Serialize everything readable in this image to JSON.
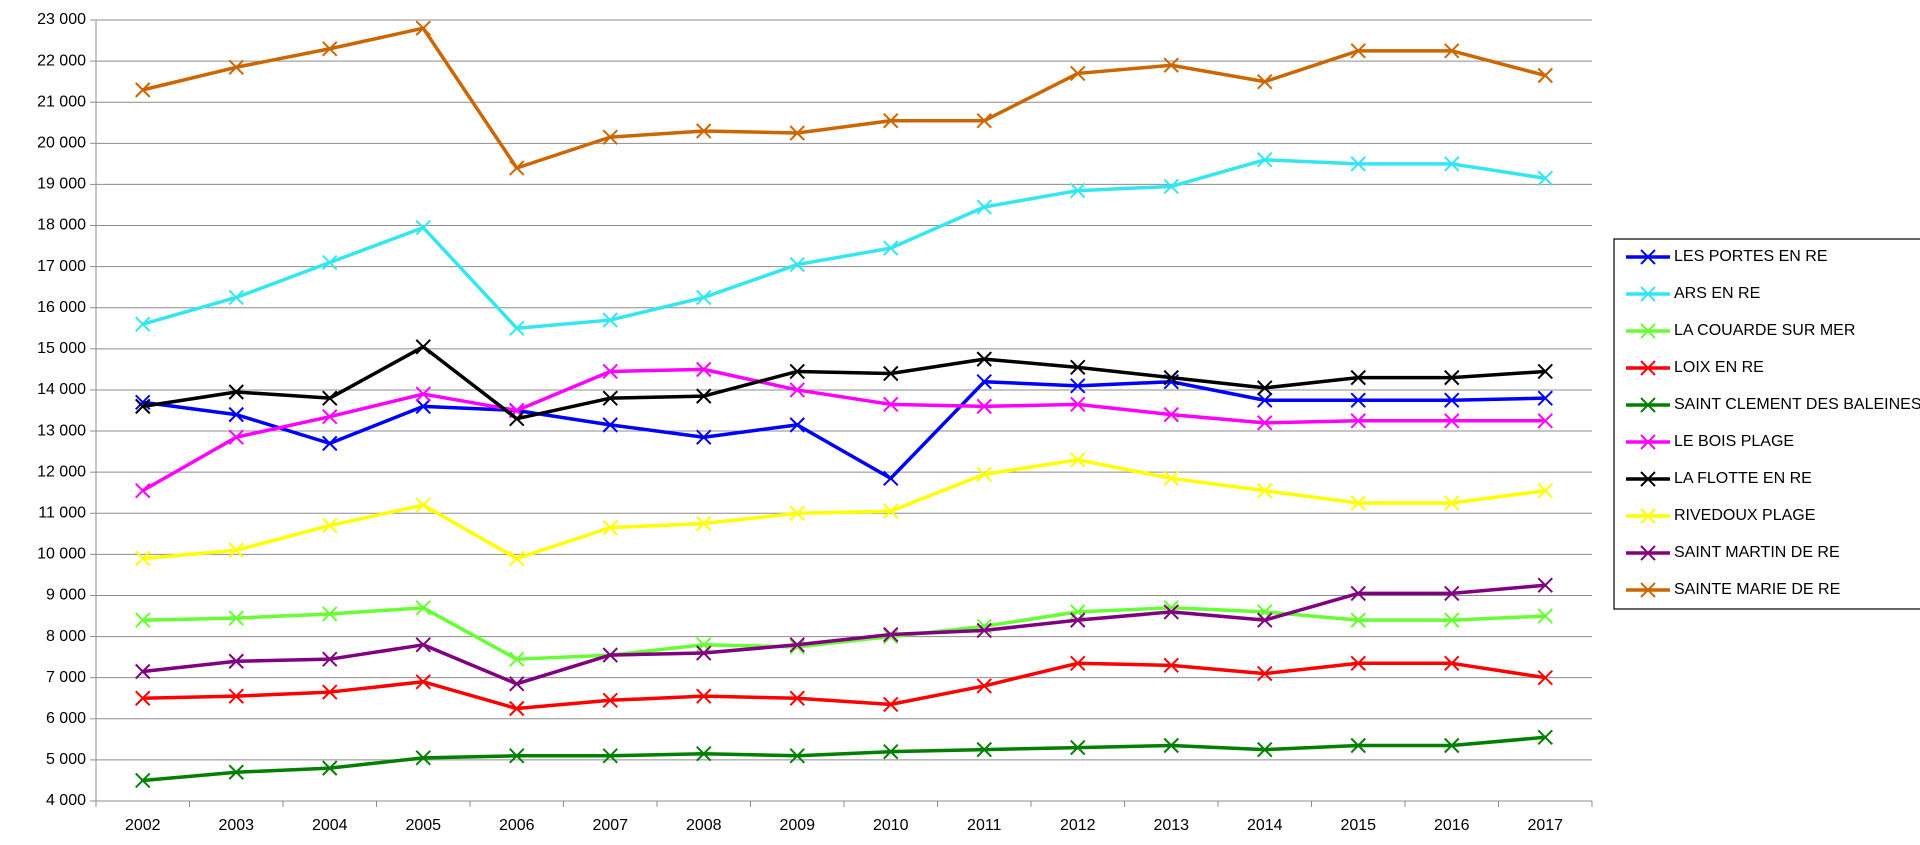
{
  "chart_data": {
    "type": "line",
    "categories": [
      "2002",
      "2003",
      "2004",
      "2005",
      "2006",
      "2007",
      "2008",
      "2009",
      "2010",
      "2011",
      "2012",
      "2013",
      "2014",
      "2015",
      "2016",
      "2017"
    ],
    "ylim": [
      4000,
      23000
    ],
    "yticks": [
      {
        "value": 4000,
        "label": "4 000"
      },
      {
        "value": 5000,
        "label": "5 000"
      },
      {
        "value": 6000,
        "label": "6 000"
      },
      {
        "value": 7000,
        "label": "7 000"
      },
      {
        "value": 8000,
        "label": "8 000"
      },
      {
        "value": 9000,
        "label": "9 000"
      },
      {
        "value": 10000,
        "label": "10 000"
      },
      {
        "value": 11000,
        "label": "11 000"
      },
      {
        "value": 12000,
        "label": "12 000"
      },
      {
        "value": 13000,
        "label": "13 000"
      },
      {
        "value": 14000,
        "label": "14 000"
      },
      {
        "value": 15000,
        "label": "15 000"
      },
      {
        "value": 16000,
        "label": "16 000"
      },
      {
        "value": 17000,
        "label": "17 000"
      },
      {
        "value": 18000,
        "label": "18 000"
      },
      {
        "value": 19000,
        "label": "19 000"
      },
      {
        "value": 20000,
        "label": "20 000"
      },
      {
        "value": 21000,
        "label": "21 000"
      },
      {
        "value": 22000,
        "label": "22 000"
      },
      {
        "value": 23000,
        "label": "23 000"
      }
    ],
    "grid": true,
    "legend": "right",
    "series": [
      {
        "name": "LES PORTES EN RE",
        "color": "#0000ff",
        "values": [
          13700,
          13400,
          12700,
          13600,
          13500,
          13150,
          12850,
          13150,
          11850,
          14200,
          14100,
          14200,
          13750,
          13750,
          13750,
          13800
        ]
      },
      {
        "name": "ARS EN RE",
        "color": "#33e6f0",
        "values": [
          15600,
          16250,
          17100,
          17950,
          15500,
          15700,
          16250,
          17050,
          17450,
          18450,
          18850,
          18950,
          19600,
          19500,
          19500,
          19150
        ]
      },
      {
        "name": "LA COUARDE SUR MER",
        "color": "#66ff33",
        "values": [
          8400,
          8450,
          8550,
          8700,
          7450,
          7550,
          7800,
          7750,
          8000,
          8250,
          8600,
          8700,
          8600,
          8400,
          8400,
          8500
        ]
      },
      {
        "name": "LOIX EN RE",
        "color": "#ff0000",
        "values": [
          6500,
          6550,
          6650,
          6900,
          6250,
          6450,
          6550,
          6500,
          6350,
          6800,
          7350,
          7300,
          7100,
          7350,
          7350,
          7000
        ]
      },
      {
        "name": "SAINT CLEMENT DES BALEINES",
        "color": "#008000",
        "values": [
          4500,
          4700,
          4800,
          5050,
          5100,
          5100,
          5150,
          5100,
          5200,
          5250,
          5300,
          5350,
          5250,
          5350,
          5350,
          5550
        ]
      },
      {
        "name": "LE BOIS PLAGE",
        "color": "#ff00ff",
        "values": [
          11550,
          12850,
          13350,
          13900,
          13500,
          14450,
          14500,
          14000,
          13650,
          13600,
          13650,
          13400,
          13200,
          13250,
          13250,
          13250
        ]
      },
      {
        "name": "LA FLOTTE EN RE",
        "color": "#000000",
        "values": [
          13600,
          13950,
          13800,
          15050,
          13300,
          13800,
          13850,
          14450,
          14400,
          14750,
          14550,
          14300,
          14050,
          14300,
          14300,
          14450
        ]
      },
      {
        "name": "RIVEDOUX PLAGE",
        "color": "#ffff00",
        "values": [
          9900,
          10100,
          10700,
          11200,
          9900,
          10650,
          10750,
          11000,
          11050,
          11950,
          12300,
          11850,
          11550,
          11250,
          11250,
          11550
        ]
      },
      {
        "name": "SAINT MARTIN DE RE",
        "color": "#800080",
        "values": [
          7150,
          7400,
          7450,
          7800,
          6850,
          7550,
          7600,
          7800,
          8050,
          8150,
          8400,
          8600,
          8400,
          9050,
          9050,
          9250
        ]
      },
      {
        "name": "SAINTE MARIE DE RE",
        "color": "#cc6600",
        "values": [
          21300,
          21850,
          22300,
          22800,
          19400,
          20150,
          20300,
          20250,
          20550,
          20550,
          21700,
          21900,
          21500,
          22250,
          22250,
          21650
        ]
      }
    ]
  }
}
